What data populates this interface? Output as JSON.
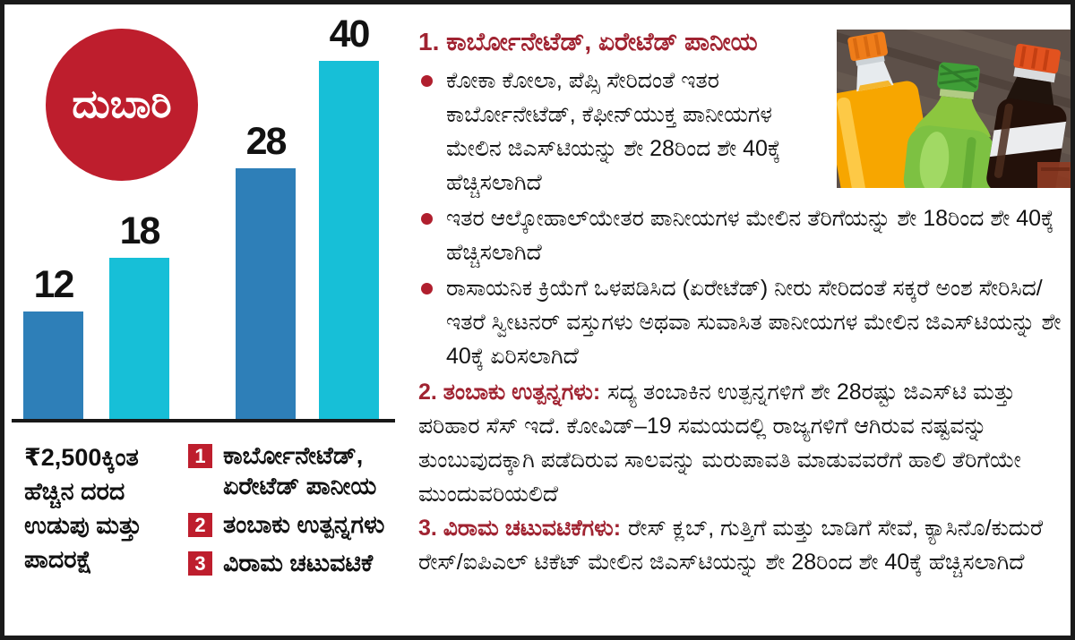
{
  "chart_data": {
    "type": "bar",
    "title": "ದುಬಾರಿ",
    "categories": [
      "12",
      "18",
      "28",
      "40"
    ],
    "values": [
      12,
      18,
      28,
      40
    ],
    "bars": [
      {
        "value": 12,
        "color": "#2e7fb8"
      },
      {
        "value": 18,
        "color": "#17bfd7"
      },
      {
        "value": 28,
        "color": "#2e7fb8"
      },
      {
        "value": 40,
        "color": "#17bfd7"
      }
    ],
    "xlabel": "₹2,500ಕ್ಕಿಂತ ಹೆಚ್ಚಿನ ದರದ ಉಡುಪು ಮತ್ತು ಪಾದರಕ್ಷೆ",
    "ylabel": "",
    "ylim": [
      0,
      40
    ],
    "grid": false,
    "legend_position": "bottom",
    "legend": [
      "ಕಾರ್ಬೋನೇಟೆಡ್, ಏರೇಟೆಡ್ ಪಾನೀಯ",
      "ತಂಬಾಕು ಉತ್ಪನ್ನಗಳು",
      "ವಿರಾಮ ಚಟುವಟಿಕೆ"
    ]
  },
  "left_panel": {
    "badge_label": "ದುಬಾರಿ",
    "axis_note_lines": [
      "₹2,500ಕ್ಕಿಂತ",
      "ಹೆಚ್ಚಿನ ದರದ",
      "ಉಡುಪು ಮತ್ತು",
      "ಪಾದರಕ್ಷೆ"
    ],
    "legend_items": [
      {
        "num": "1",
        "label": "ಕಾರ್ಬೋನೇಟೆಡ್, ಏರೇಟೆಡ್ ಪಾನೀಯ"
      },
      {
        "num": "2",
        "label": "ತಂಬಾಕು ಉತ್ಪನ್ನಗಳು"
      },
      {
        "num": "3",
        "label": "ವಿರಾಮ ಚಟುವಟಿಕೆ"
      }
    ]
  },
  "right_panel": {
    "photo_alt": "ಪಾನೀಯ ಬಾಟಲಿಗಳು",
    "section1": {
      "heading": "1. ಕಾರ್ಬೋನೇಟೆಡ್, ಏರೇಟೆಡ್ ಪಾನೀಯ",
      "bullets": [
        "ಕೋಕಾ ಕೋಲಾ, ಪೆಪ್ಸಿ ಸೇರಿದಂತೆ ಇತರ ಕಾರ್ಬೋನೇಟೆಡ್, ಕೆಫೀನ್‌ಯುಕ್ತ ಪಾನೀಯಗಳ ಮೇಲಿನ ಜಿಎಸ್‌ಟಿಯನ್ನು ಶೇ 28ರಿಂದ ಶೇ 40ಕ್ಕೆ ಹೆಚ್ಚಿಸಲಾಗಿದೆ",
        "ಇತರ ಆಲ್ಕೋಹಾಲ್‌ಯೇತರ ಪಾನೀಯಗಳ ಮೇಲಿನ ತೆರಿಗೆಯನ್ನು ಶೇ 18ರಿಂದ ಶೇ 40ಕ್ಕೆ ಹೆಚ್ಚಿಸಲಾಗಿದೆ",
        "ರಾಸಾಯನಿಕ ಕ್ರಿಯೆಗೆ ಒಳಪಡಿಸಿದ (ಏರೇಟೆಡ್) ನೀರು ಸೇರಿದಂತೆ ಸಕ್ಕರೆ ಅಂಶ ಸೇರಿಸಿದ/ಇತರೆ ಸ್ವೀಟನರ್ ವಸ್ತುಗಳು ಅಥವಾ ಸುವಾಸಿತ ಪಾನೀಯಗಳ ಮೇಲಿನ ಜಿಎಸ್‌ಟಿಯನ್ನು ಶೇ 40ಕ್ಕೆ ಏರಿಸಲಾಗಿದೆ"
      ]
    },
    "section2": {
      "heading": "2. ತಂಬಾಕು ಉತ್ಪನ್ನಗಳು:",
      "body": "ಸದ್ಯ ತಂಬಾಕಿನ ಉತ್ಪನ್ನಗಳಿಗೆ ಶೇ 28ರಷ್ಟು ಜಿಎಸ್‌ಟಿ ಮತ್ತು ಪರಿಹಾರ ಸೆಸ್ ಇದೆ. ಕೋವಿಡ್–19 ಸಮಯದಲ್ಲಿ ರಾಜ್ಯಗಳಿಗೆ ಆಗಿರುವ ನಷ್ಟವನ್ನು ತುಂಬುವುದಕ್ಕಾಗಿ ಪಡೆದಿರುವ ಸಾಲವನ್ನು ಮರುಪಾವತಿ ಮಾಡುವವರೆಗೆ ಹಾಲಿ ತೆರಿಗೆಯೇ ಮುಂದುವರಿಯಲಿದೆ"
    },
    "section3": {
      "heading": "3. ವಿರಾಮ ಚಟುವಟಿಕೆಗಳು:",
      "body": "ರೇಸ್ ಕ್ಲಬ್, ಗುತ್ತಿಗೆ ಮತ್ತು ಬಾಡಿಗೆ ಸೇವೆ, ಕ್ಯಾಸಿನೊ/ಕುದುರೆ ರೇಸ್/ಐಪಿಎಲ್ ಟಿಕೆಟ್ ಮೇಲಿನ ಜಿಎಸ್‌ಟಿಯನ್ನು ಶೇ 28ರಿಂದ ಶೇ 40ಕ್ಕೆ ಹೆಚ್ಚಿಸಲಾಗಿದೆ"
    }
  },
  "colors": {
    "bar_blue": "#2e7fb8",
    "bar_cyan": "#17bfd7",
    "badge_red": "#be1e2d",
    "heading_red": "#a02331",
    "bullet_red": "#b01f2e",
    "text_black": "#141414",
    "frame_border": "#1a1a1a"
  }
}
